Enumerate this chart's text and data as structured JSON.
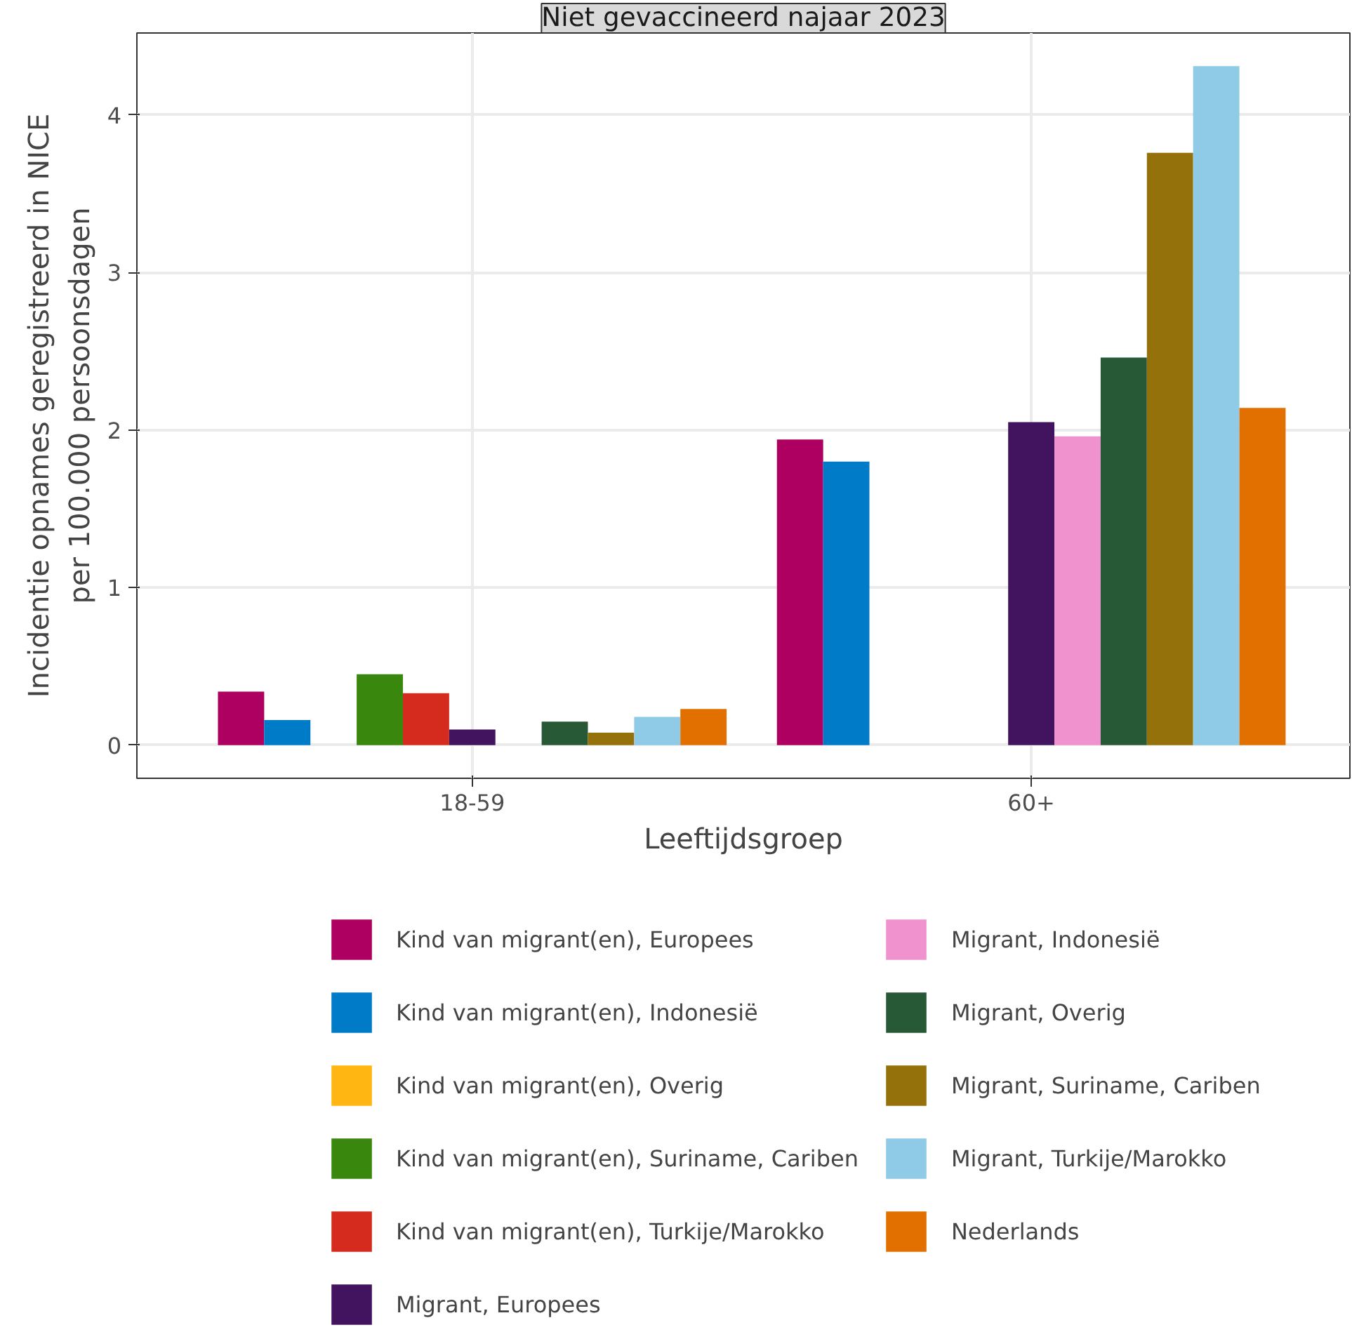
{
  "chart_data": {
    "type": "bar",
    "title": "Niet gevaccineerd najaar 2023",
    "xlabel": "Leeftijdsgroep",
    "ylabel": "Incidentie opnames geregistreerd in NICE\nper 100.000 persoonsdagen",
    "categories": [
      "18-59",
      "60+"
    ],
    "ylim": [
      -0.21,
      4.52
    ],
    "yticks": [
      0,
      1,
      2,
      3,
      4
    ],
    "grid": true,
    "legend": "bottom",
    "series": [
      {
        "name": "Kind van migrant(en), Europees",
        "color": "#ad0060",
        "values": [
          0.34,
          1.94
        ]
      },
      {
        "name": "Kind van migrant(en), Indonesië",
        "color": "#007bc7",
        "values": [
          0.16,
          1.8
        ]
      },
      {
        "name": "Kind van migrant(en), Overig",
        "color": "#ffb612",
        "values": [
          null,
          null
        ]
      },
      {
        "name": "Kind van migrant(en), Suriname, Cariben",
        "color": "#39870c",
        "values": [
          0.45,
          null
        ]
      },
      {
        "name": "Kind van migrant(en), Turkije/Marokko",
        "color": "#d52b1e",
        "values": [
          0.33,
          null
        ]
      },
      {
        "name": "Migrant, Europees",
        "color": "#42145f",
        "values": [
          0.1,
          2.05
        ]
      },
      {
        "name": "Migrant, Indonesië",
        "color": "#f092cd",
        "values": [
          null,
          1.96
        ]
      },
      {
        "name": "Migrant, Overig",
        "color": "#275937",
        "values": [
          0.15,
          2.46
        ]
      },
      {
        "name": "Migrant, Suriname, Cariben",
        "color": "#94710a",
        "values": [
          0.08,
          3.76
        ]
      },
      {
        "name": "Migrant, Turkije/Marokko",
        "color": "#8fcae7",
        "values": [
          0.18,
          4.31
        ]
      },
      {
        "name": "Nederlands",
        "color": "#e17000",
        "values": [
          0.23,
          2.14
        ]
      }
    ]
  }
}
